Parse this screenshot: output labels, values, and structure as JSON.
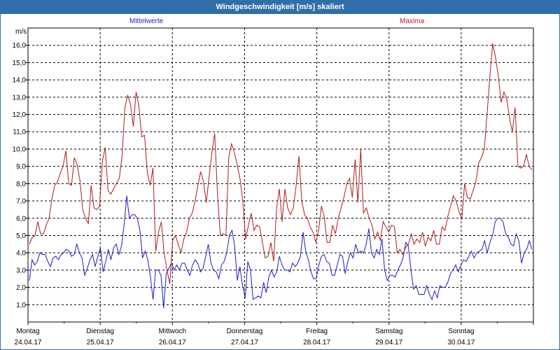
{
  "window": {
    "title": "Windgeschwindigkeit [m/s] skaliert"
  },
  "chart_data": {
    "type": "line",
    "title": "Windgeschwindigkeit [m/s] skaliert",
    "ylabel": "m/s",
    "ylim": [
      0,
      17
    ],
    "yticks": [
      "1,0",
      "2,0",
      "3,0",
      "4,0",
      "5,0",
      "6,0",
      "7,0",
      "8,0",
      "9,0",
      "10,0",
      "11,0",
      "12,0",
      "13,0",
      "14,0",
      "15,0",
      "16,0"
    ],
    "day_labels": [
      {
        "day": "Montag",
        "date": "24.04.17"
      },
      {
        "day": "Dienstag",
        "date": "25.04.17"
      },
      {
        "day": "Mittwoch",
        "date": "26.04.17"
      },
      {
        "day": "Donnerstag",
        "date": "27.04.17"
      },
      {
        "day": "Freitag",
        "date": "28.04.17"
      },
      {
        "day": "Samstag",
        "date": "29.04.17"
      },
      {
        "day": "Sonntag",
        "date": "30.04.17"
      }
    ],
    "grid": true,
    "series": [
      {
        "name": "Mittelwerte",
        "color": "#1a1acc",
        "values": [
          2.4,
          3.6,
          3.3,
          3.5,
          4.0,
          3.9,
          3.9,
          3.5,
          3.2,
          3.7,
          3.8,
          3.6,
          3.9,
          4.0,
          4.2,
          4.1,
          3.8,
          3.9,
          4.5,
          4.0,
          3.7,
          2.7,
          3.1,
          3.6,
          3.9,
          3.2,
          3.8,
          4.3,
          2.9,
          3.5,
          4.2,
          3.6,
          4.3,
          4.5,
          3.9,
          4.4,
          5.6,
          7.3,
          6.0,
          6.2,
          6.2,
          6.0,
          5.3,
          3.7,
          4.1,
          3.6,
          2.6,
          1.3,
          3.0,
          3.0,
          2.7,
          0.8,
          2.8,
          3.1,
          3.4,
          3.0,
          3.3,
          3.0,
          3.4,
          3.4,
          3.0,
          2.7,
          3.3,
          3.6,
          3.4,
          2.9,
          3.1,
          3.8,
          4.5,
          3.4,
          3.0,
          2.9,
          2.5,
          3.3,
          3.5,
          4.0,
          5.0,
          5.3,
          4.4,
          2.4,
          3.2,
          2.1,
          1.4,
          3.5,
          3.0,
          1.3,
          1.4,
          1.5,
          1.4,
          2.3,
          1.7,
          2.6,
          3.0,
          2.6,
          2.9,
          3.8,
          3.3,
          3.0,
          3.0,
          2.9,
          3.4,
          3.2,
          3.4,
          3.8,
          5.2,
          4.1,
          3.6,
          2.9,
          2.5,
          2.5,
          3.3,
          3.8,
          3.9,
          3.5,
          3.4,
          2.7,
          2.7,
          3.3,
          3.9,
          3.8,
          2.8,
          3.5,
          4.0,
          3.7,
          4.5,
          4.0,
          4.1,
          4.0,
          4.5,
          5.4,
          4.0,
          3.7,
          4.2,
          3.9,
          4.8,
          3.0,
          2.4,
          2.7,
          2.7,
          2.6,
          3.0,
          3.3,
          3.7,
          4.6,
          4.4,
          3.0,
          1.9,
          2.1,
          1.6,
          1.6,
          1.6,
          2.1,
          1.6,
          1.3,
          1.8,
          1.4,
          2.1,
          2.0,
          2.0,
          2.3,
          2.8,
          3.0,
          3.3,
          2.9,
          3.3,
          3.6,
          3.5,
          3.8,
          4.1,
          3.7,
          4.0,
          4.1,
          4.2,
          4.7,
          4.0,
          4.6,
          5.0,
          5.8,
          6.0,
          6.0,
          5.8,
          5.1,
          4.9,
          4.5,
          4.4,
          5.1,
          4.7,
          3.4,
          4.0,
          4.2,
          4.7,
          4.2
        ],
        "x_range": [
          0,
          1
        ]
      },
      {
        "name": "Maxima",
        "color": "#b01a1a",
        "values": [
          4.5,
          4.9,
          5.0,
          5.8,
          5.1,
          5.1,
          5.6,
          6.0,
          7.1,
          7.9,
          8.1,
          8.6,
          9.0,
          9.9,
          8.0,
          7.9,
          9.5,
          9.1,
          8.2,
          6.5,
          6.0,
          5.7,
          7.9,
          6.6,
          6.5,
          6.7,
          9.3,
          10.1,
          7.6,
          7.4,
          7.7,
          8.0,
          8.3,
          9.6,
          12.4,
          13.1,
          12.6,
          11.3,
          13.3,
          12.5,
          10.7,
          10.8,
          8.6,
          7.9,
          8.9,
          4.1,
          5.2,
          5.8,
          4.0,
          3.0,
          2.2,
          4.7,
          5.0,
          4.5,
          4.0,
          4.8,
          5.2,
          6.0,
          6.3,
          7.0,
          7.9,
          8.7,
          8.1,
          6.9,
          8.4,
          9.8,
          10.9,
          7.4,
          5.0,
          5.1,
          5.0,
          9.5,
          10.3,
          9.8,
          9.1,
          8.3,
          7.0,
          4.8,
          5.6,
          6.3,
          5.3,
          5.6,
          5.5,
          4.6,
          3.7,
          3.8,
          4.6,
          3.5,
          6.5,
          7.7,
          5.8,
          7.7,
          6.6,
          6.2,
          6.6,
          7.9,
          9.6,
          7.0,
          6.2,
          6.0,
          5.5,
          5.2,
          4.6,
          5.3,
          6.7,
          6.1,
          4.6,
          4.6,
          5.6,
          5.1,
          6.0,
          6.6,
          7.2,
          8.0,
          8.3,
          7.2,
          9.4,
          6.9,
          10.0,
          6.3,
          6.6,
          6.0,
          5.6,
          4.8,
          5.2,
          4.7,
          5.8,
          5.5,
          5.2,
          5.6,
          5.5,
          4.0,
          4.2,
          3.9,
          4.3,
          4.5,
          5.1,
          4.5,
          4.8,
          4.6,
          5.2,
          4.4,
          4.9,
          4.7,
          5.3,
          4.5,
          4.5,
          5.5,
          5.3,
          6.1,
          6.7,
          7.3,
          7.0,
          6.4,
          5.9,
          8.0,
          7.2,
          7.1,
          7.6,
          8.1,
          9.2,
          9.5,
          10.0,
          12.0,
          14.2,
          16.1,
          15.3,
          14.2,
          12.7,
          13.3,
          12.9,
          11.8,
          11.0,
          12.4,
          9.0,
          8.9,
          9.0,
          9.7,
          9.0,
          8.8
        ],
        "x_range": [
          0,
          1
        ]
      }
    ]
  }
}
